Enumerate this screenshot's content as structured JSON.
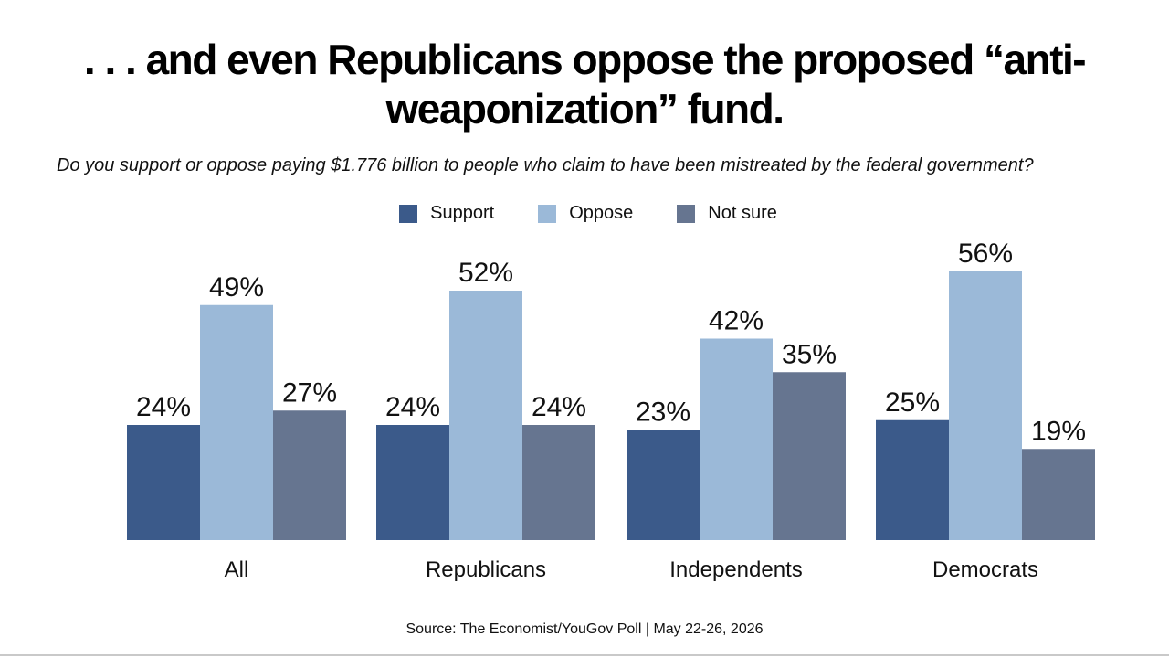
{
  "title": ". . . and even Republicans oppose the proposed “anti-weaponization” fund.",
  "source": "Source: The Economist/YouGov Poll | May 22-26, 2026",
  "colors": {
    "support": "#3b5a8a",
    "oppose": "#9bb9d8",
    "not_sure": "#667590"
  },
  "chart_data": {
    "type": "bar",
    "title": ". . . and even Republicans oppose the proposed “anti-weaponization” fund.",
    "subtitle": "Do you support or oppose paying $1.776 billion to people who claim to have been mistreated by the federal government?",
    "categories": [
      "All",
      "Republicans",
      "Independents",
      "Democrats"
    ],
    "series": [
      {
        "name": "Support",
        "values": [
          24,
          24,
          23,
          25
        ]
      },
      {
        "name": "Oppose",
        "values": [
          49,
          52,
          42,
          56
        ]
      },
      {
        "name": "Not sure",
        "values": [
          27,
          24,
          35,
          19
        ]
      }
    ],
    "value_suffix": "%",
    "ylim": [
      0,
      60
    ],
    "grid": false,
    "legend_position": "top-center",
    "xlabel": "",
    "ylabel": ""
  }
}
